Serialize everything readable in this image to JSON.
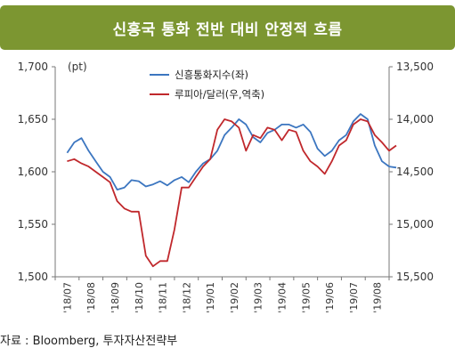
{
  "title": "신흥국 통화 전반 대비 안정적 흐름",
  "source": "자료 : Bloomberg, 투자자산전략부",
  "chart_data": {
    "type": "line",
    "title": "신흥국 통화 전반 대비 안정적 흐름",
    "unit_label": "(pt)",
    "left_axis": {
      "ticks": [
        "1,700",
        "1,650",
        "1,600",
        "1,550",
        "1,500"
      ],
      "values": [
        1700,
        1650,
        1600,
        1550,
        1500
      ],
      "ylim": [
        1500,
        1700
      ]
    },
    "right_axis": {
      "ticks": [
        "13,500",
        "14,000",
        "14,500",
        "15,000",
        "15,500"
      ],
      "values": [
        13500,
        14000,
        14500,
        15000,
        15500
      ],
      "ylim": [
        15500,
        13500
      ],
      "inverted": true
    },
    "x_ticks": [
      "'18/07",
      "'18/08",
      "'18/09",
      "'18/10",
      "'18/11",
      "'18/12",
      "'19/01",
      "'19/02",
      "'19/03",
      "'19/04",
      "'19/05",
      "'19/06",
      "'19/07",
      "'19/08"
    ],
    "grid": false,
    "legend_placement": "top-center",
    "series": [
      {
        "name": "신흥통화지수(좌)",
        "axis": "left",
        "color": "#3c76c0",
        "x": [
          0,
          0.3,
          0.6,
          0.9,
          1.2,
          1.5,
          1.8,
          2.1,
          2.4,
          2.7,
          3.0,
          3.3,
          3.6,
          3.9,
          4.2,
          4.5,
          4.8,
          5.1,
          5.4,
          5.7,
          6.0,
          6.3,
          6.6,
          6.9,
          7.2,
          7.5,
          7.8,
          8.1,
          8.4,
          8.7,
          9.0,
          9.3,
          9.6,
          9.9,
          10.2,
          10.5,
          10.8,
          11.1,
          11.4,
          11.7,
          12.0,
          12.3,
          12.6,
          12.9,
          13.2,
          13.5,
          13.8
        ],
        "values": [
          1618,
          1628,
          1632,
          1620,
          1610,
          1600,
          1595,
          1583,
          1585,
          1592,
          1591,
          1586,
          1588,
          1591,
          1587,
          1592,
          1595,
          1590,
          1600,
          1608,
          1612,
          1620,
          1635,
          1642,
          1650,
          1645,
          1633,
          1628,
          1637,
          1640,
          1645,
          1645,
          1642,
          1645,
          1638,
          1622,
          1615,
          1620,
          1630,
          1635,
          1648,
          1655,
          1650,
          1625,
          1610,
          1605,
          1604
        ]
      },
      {
        "name": "루피아/달러(우,역축)",
        "axis": "right",
        "color": "#c0282c",
        "x": [
          0,
          0.3,
          0.6,
          0.9,
          1.2,
          1.5,
          1.8,
          2.1,
          2.4,
          2.7,
          3.0,
          3.3,
          3.6,
          3.9,
          4.2,
          4.5,
          4.8,
          5.1,
          5.4,
          5.7,
          6.0,
          6.3,
          6.6,
          6.9,
          7.2,
          7.5,
          7.8,
          8.1,
          8.4,
          8.7,
          9.0,
          9.3,
          9.6,
          9.9,
          10.2,
          10.5,
          10.8,
          11.1,
          11.4,
          11.7,
          12.0,
          12.3,
          12.6,
          12.9,
          13.2,
          13.5,
          13.8
        ],
        "values": [
          14400,
          14380,
          14420,
          14450,
          14500,
          14550,
          14600,
          14780,
          14850,
          14880,
          14880,
          15300,
          15400,
          15350,
          15350,
          15050,
          14650,
          14650,
          14550,
          14450,
          14380,
          14100,
          14000,
          14020,
          14080,
          14300,
          14150,
          14180,
          14080,
          14100,
          14200,
          14100,
          14120,
          14300,
          14400,
          14450,
          14520,
          14400,
          14250,
          14200,
          14050,
          14000,
          14020,
          14150,
          14220,
          14300,
          14250
        ]
      }
    ]
  }
}
